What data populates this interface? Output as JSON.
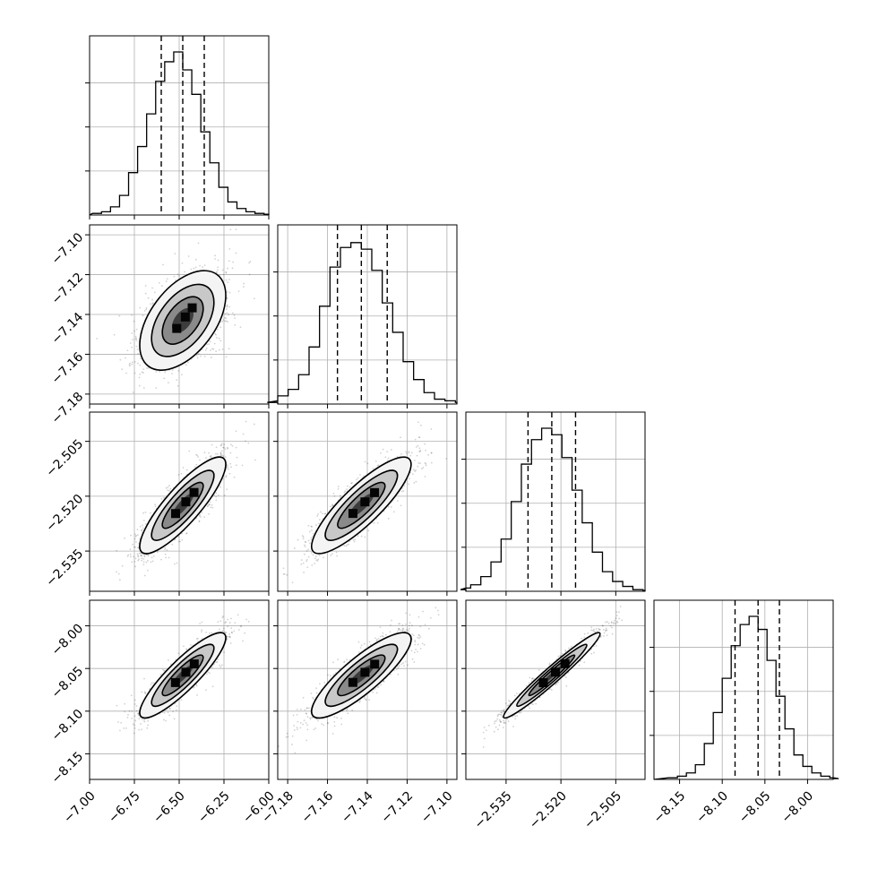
{
  "chart_data": {
    "type": "corner",
    "grid": true,
    "parameters": [
      {
        "range": [
          -7.0,
          -6.0
        ],
        "ticks": [
          "−7.00",
          "−6.75",
          "−6.50",
          "−6.25",
          "−6.00"
        ],
        "tick_values": [
          -7.0,
          -6.75,
          -6.5,
          -6.25,
          -6.0
        ],
        "mean": -6.48,
        "sd": 0.12,
        "quantiles": [
          -6.6,
          -6.48,
          -6.36
        ],
        "hist_density": [
          0.01,
          0.02,
          0.05,
          0.12,
          0.26,
          0.42,
          0.62,
          0.82,
          0.94,
          1.0,
          0.89,
          0.74,
          0.51,
          0.32,
          0.17,
          0.08,
          0.04,
          0.02,
          0.01,
          0.005
        ]
      },
      {
        "range": [
          -7.185,
          -7.095
        ],
        "ticks": [
          "−7.18",
          "−7.16",
          "−7.14",
          "−7.12",
          "−7.10"
        ],
        "tick_values": [
          -7.18,
          -7.16,
          -7.14,
          -7.12,
          -7.1
        ],
        "mean": -7.143,
        "sd": 0.0125,
        "quantiles": [
          -7.155,
          -7.143,
          -7.13
        ],
        "hist_density": [
          0.01,
          0.02,
          0.05,
          0.09,
          0.18,
          0.35,
          0.6,
          0.84,
          0.96,
          0.99,
          0.95,
          0.82,
          0.62,
          0.44,
          0.26,
          0.15,
          0.07,
          0.03,
          0.02,
          0.01
        ]
      },
      {
        "range": [
          -2.546,
          -2.497
        ],
        "ticks": [
          "−2.535",
          "−2.520",
          "−2.505"
        ],
        "tick_values": [
          -2.535,
          -2.52,
          -2.505
        ],
        "mean": -2.5225,
        "sd": 0.0066,
        "quantiles": [
          -2.529,
          -2.5225,
          -2.516
        ],
        "hist_density": [
          0.01,
          0.02,
          0.04,
          0.09,
          0.18,
          0.32,
          0.55,
          0.78,
          0.93,
          1.0,
          0.96,
          0.82,
          0.62,
          0.42,
          0.24,
          0.12,
          0.06,
          0.03,
          0.01,
          0.005
        ]
      },
      {
        "range": [
          -8.18,
          -7.97
        ],
        "ticks": [
          "−8.15",
          "−8.10",
          "−8.05",
          "−8.00"
        ],
        "tick_values": [
          -8.15,
          -8.1,
          -8.05,
          -8.0
        ],
        "mean": -8.058,
        "sd": 0.025,
        "quantiles": [
          -8.085,
          -8.058,
          -8.033
        ],
        "hist_density": [
          0.01,
          0.02,
          0.04,
          0.09,
          0.22,
          0.41,
          0.62,
          0.82,
          0.95,
          1.0,
          0.92,
          0.73,
          0.51,
          0.31,
          0.15,
          0.08,
          0.04,
          0.02,
          0.01,
          0.005
        ]
      }
    ],
    "correlations": [
      [
        1.0,
        0.5,
        0.85,
        0.88
      ],
      [
        0.5,
        1.0,
        0.85,
        0.85
      ],
      [
        0.85,
        0.85,
        1.0,
        0.97
      ],
      [
        0.88,
        0.85,
        0.97,
        1.0
      ]
    ]
  }
}
